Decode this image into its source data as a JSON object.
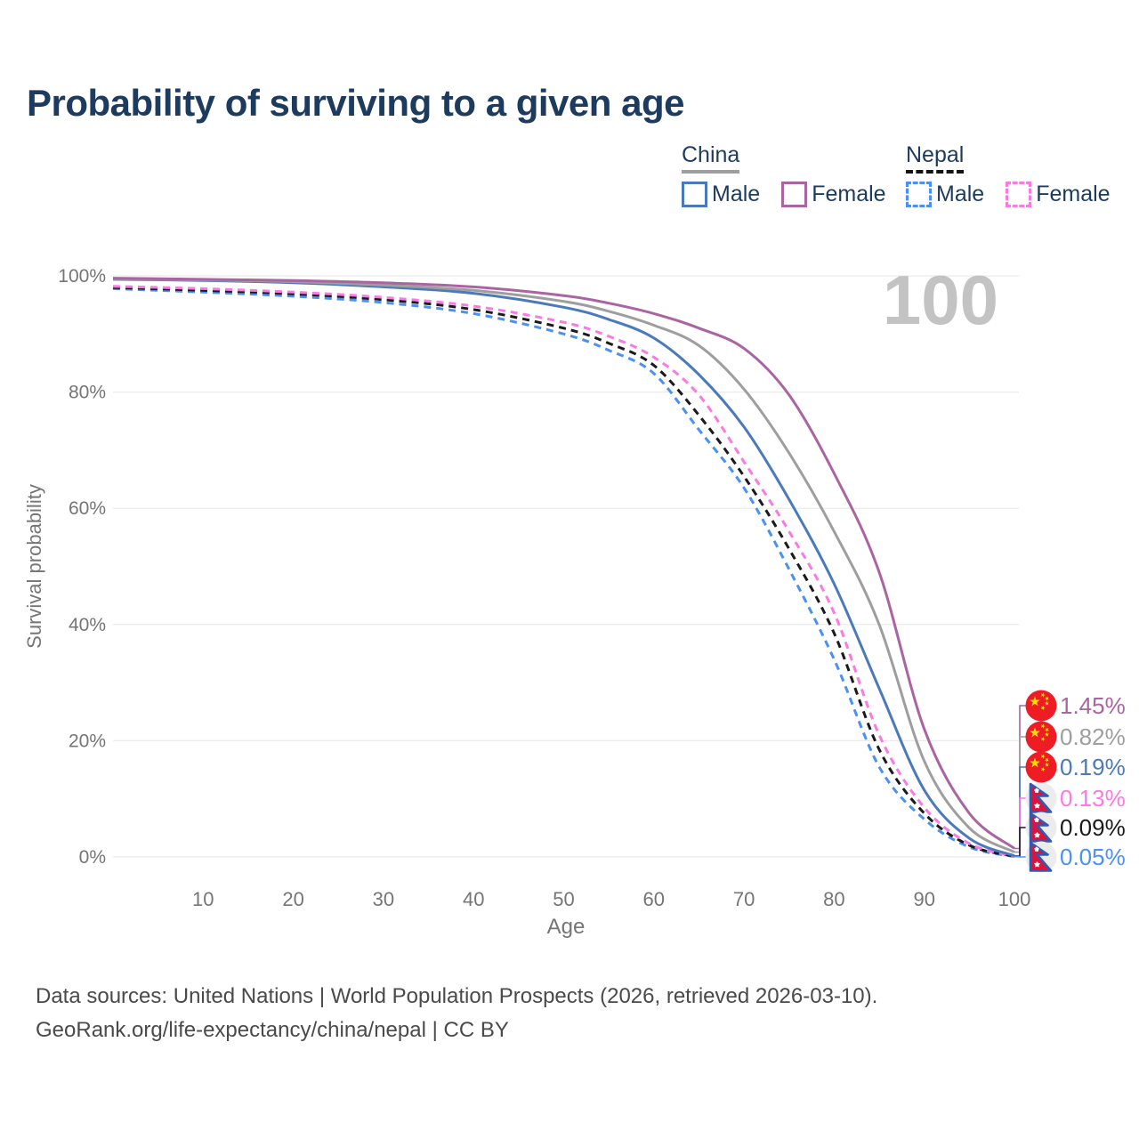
{
  "title": "Probability of surviving to a given age",
  "watermark_age": "100",
  "legend": {
    "groups": [
      {
        "label": "China",
        "underline_style": "solid",
        "underline_color": "#9e9e9e",
        "items": [
          {
            "label": "Male",
            "color": "#4b7abc",
            "dashed": false
          },
          {
            "label": "Female",
            "color": "#aa64a2",
            "dashed": false
          }
        ]
      },
      {
        "label": "Nepal",
        "underline_style": "dashed",
        "underline_color": "#141414",
        "items": [
          {
            "label": "Male",
            "color": "#4a90f5",
            "dashed": true
          },
          {
            "label": "Female",
            "color": "#fb79e3",
            "dashed": true
          }
        ]
      }
    ]
  },
  "colors": {
    "title_navy": "#1d3b5e",
    "tick_gray": "#757575",
    "grid": "#ececec",
    "watermark_gray": "#c3c3c3",
    "footer_gray": "#4a4a4a"
  },
  "chart_data": {
    "type": "line",
    "title": "Probability of surviving to a given age",
    "xlabel": "Age",
    "ylabel": "Survival probability",
    "xlim": [
      0,
      100.5
    ],
    "ylim": [
      0,
      100
    ],
    "grid": "horizontal",
    "x_ticks": [
      10,
      20,
      30,
      40,
      50,
      60,
      70,
      80,
      90,
      100
    ],
    "y_ticks": [
      {
        "label": "0%",
        "value": 0
      },
      {
        "label": "20%",
        "value": 20
      },
      {
        "label": "40%",
        "value": 40
      },
      {
        "label": "60%",
        "value": 60
      },
      {
        "label": "80%",
        "value": 80
      },
      {
        "label": "100%",
        "value": 100
      }
    ],
    "legend_position": "top-right",
    "series": [
      {
        "name": "China Female",
        "country": "China",
        "sex": "female",
        "color": "#aa64a2",
        "dashed": false,
        "flag": "china-flag-icon",
        "end_label": "1.45%",
        "points": [
          [
            0,
            99.6
          ],
          [
            10,
            99.4
          ],
          [
            20,
            99.2
          ],
          [
            30,
            98.8
          ],
          [
            40,
            98.1
          ],
          [
            50,
            96.6
          ],
          [
            55,
            95.3
          ],
          [
            60,
            93.5
          ],
          [
            65,
            91
          ],
          [
            70,
            87.5
          ],
          [
            75,
            79.5
          ],
          [
            80,
            66
          ],
          [
            85,
            49
          ],
          [
            90,
            22
          ],
          [
            95,
            7.5
          ],
          [
            100,
            1.45
          ]
        ]
      },
      {
        "name": "China",
        "country": "China",
        "sex": "all",
        "color": "#9e9e9e",
        "dashed": false,
        "flag": "china-flag-icon",
        "end_label": "0.82%",
        "points": [
          [
            0,
            99.5
          ],
          [
            10,
            99.3
          ],
          [
            20,
            99.0
          ],
          [
            30,
            98.4
          ],
          [
            40,
            97.5
          ],
          [
            50,
            95.6
          ],
          [
            55,
            93.9
          ],
          [
            60,
            91.5
          ],
          [
            65,
            88
          ],
          [
            70,
            80.5
          ],
          [
            75,
            69.5
          ],
          [
            80,
            56
          ],
          [
            85,
            40
          ],
          [
            90,
            16.5
          ],
          [
            95,
            5
          ],
          [
            100,
            0.82
          ]
        ]
      },
      {
        "name": "China Male",
        "country": "China",
        "sex": "male",
        "color": "#4b7abc",
        "dashed": false,
        "flag": "china-flag-icon",
        "end_label": "0.19%",
        "points": [
          [
            0,
            99.4
          ],
          [
            10,
            99.2
          ],
          [
            20,
            98.8
          ],
          [
            30,
            98.1
          ],
          [
            40,
            97.0
          ],
          [
            50,
            94.6
          ],
          [
            55,
            92.5
          ],
          [
            60,
            89.3
          ],
          [
            65,
            83
          ],
          [
            70,
            74
          ],
          [
            75,
            61.5
          ],
          [
            80,
            47
          ],
          [
            85,
            29
          ],
          [
            90,
            11.5
          ],
          [
            95,
            3.2
          ],
          [
            100,
            0.19
          ]
        ]
      },
      {
        "name": "Nepal Female",
        "country": "Nepal",
        "sex": "female",
        "color": "#fb79e3",
        "dashed": true,
        "flag": "nepal-flag-icon",
        "end_label": "0.13%",
        "points": [
          [
            0,
            98.2
          ],
          [
            10,
            97.8
          ],
          [
            20,
            97.2
          ],
          [
            30,
            96.3
          ],
          [
            40,
            94.8
          ],
          [
            50,
            92.0
          ],
          [
            55,
            89.6
          ],
          [
            60,
            86
          ],
          [
            65,
            79.5
          ],
          [
            70,
            68
          ],
          [
            75,
            56
          ],
          [
            80,
            42
          ],
          [
            85,
            21
          ],
          [
            90,
            8.5
          ],
          [
            95,
            2.3
          ],
          [
            100,
            0.13
          ]
        ]
      },
      {
        "name": "Nepal",
        "country": "Nepal",
        "sex": "all",
        "color": "#1a1a1a",
        "dashed": true,
        "flag": "nepal-flag-icon",
        "end_label": "0.09%",
        "points": [
          [
            0,
            98.0
          ],
          [
            10,
            97.5
          ],
          [
            20,
            96.9
          ],
          [
            30,
            95.9
          ],
          [
            40,
            94.2
          ],
          [
            50,
            91.0
          ],
          [
            55,
            88.4
          ],
          [
            60,
            84.6
          ],
          [
            65,
            76
          ],
          [
            70,
            65.5
          ],
          [
            75,
            53
          ],
          [
            80,
            38.5
          ],
          [
            85,
            18.5
          ],
          [
            90,
            7.5
          ],
          [
            95,
            2.0
          ],
          [
            100,
            0.09
          ]
        ]
      },
      {
        "name": "Nepal Male",
        "country": "Nepal",
        "sex": "male",
        "color": "#4a90f5",
        "dashed": true,
        "flag": "nepal-flag-icon",
        "end_label": "0.05%",
        "points": [
          [
            0,
            97.8
          ],
          [
            10,
            97.2
          ],
          [
            20,
            96.5
          ],
          [
            30,
            95.4
          ],
          [
            40,
            93.5
          ],
          [
            50,
            90.0
          ],
          [
            55,
            87.2
          ],
          [
            60,
            83.2
          ],
          [
            65,
            73.5
          ],
          [
            70,
            63.5
          ],
          [
            75,
            49.5
          ],
          [
            80,
            34
          ],
          [
            85,
            15.5
          ],
          [
            90,
            6.5
          ],
          [
            95,
            1.7
          ],
          [
            100,
            0.05
          ]
        ]
      }
    ]
  },
  "footer": {
    "line1": "Data sources: United Nations | World Population Prospects (2026, retrieved 2026-03-10).",
    "line2": "GeoRank.org/life-expectancy/china/nepal | CC BY"
  }
}
